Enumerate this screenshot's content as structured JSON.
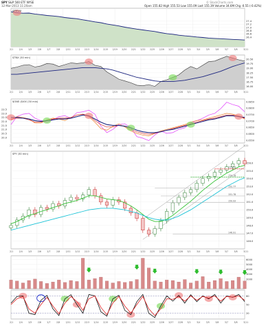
{
  "header": {
    "symbol": "SPY",
    "name": "S&P 500 ETF",
    "exchange": "NYSE",
    "date": "12-Mar-2013 11:20am",
    "open_label": "Open",
    "open": "155.82",
    "high_label": "High",
    "high": "155.53",
    "low_label": "Low",
    "low": "155.09",
    "last_label": "Last",
    "last": "155.39",
    "volume_label": "Volume",
    "volume": "34.6M",
    "chg_label": "Chg",
    "chg": "-0.55 (-0.42%)",
    "copyright": "© StockCharts.com"
  },
  "colors": {
    "area_fill": "#cfe2c8",
    "area_line": "#1a237e",
    "gray_fill": "#cfcfcf",
    "price_up": "#2e7d32",
    "price_down": "#c62828",
    "ma_green": "#33c233",
    "ma_cyan": "#19c2d6",
    "highlight": "#f08080",
    "highlight_green": "#7cdc5c",
    "volume_bar": "#d88a8a",
    "arrow": "#2ebd2e",
    "red_dotted": "#e02020",
    "green_dotted": "#22aa22"
  },
  "chart_data": [
    {
      "type": "area",
      "panel": "ratio-1",
      "label": "SPY:VIX",
      "ylim": [
        25.8,
        28.2
      ],
      "yticks": [
        "27.4",
        "27.2",
        "27.0",
        "26.8",
        "26.6",
        "26.4"
      ],
      "values": [
        27.98,
        27.92,
        27.89,
        27.9,
        27.84,
        27.8,
        27.75,
        27.72,
        27.68,
        27.62,
        27.58,
        27.55,
        27.48,
        27.42,
        27.35,
        27.3,
        27.22,
        27.16,
        27.1,
        27.02,
        26.96,
        26.9,
        26.85,
        26.8,
        26.75,
        26.68,
        26.62,
        26.58,
        26.52,
        26.48,
        26.45,
        26.41,
        26.38,
        26.34,
        26.32,
        26.3,
        26.28,
        26.26,
        26.24,
        26.22
      ]
    },
    {
      "type": "area",
      "panel": "ratio-2",
      "label": "$TNX (30 min)",
      "ylim": [
        15.5,
        21.2
      ],
      "yticks": [
        "20.50",
        "19.75",
        "19.00",
        "18.25",
        "17.50",
        "16.75",
        "16.00"
      ],
      "values": [
        19.0,
        19.2,
        19.5,
        19.6,
        19.2,
        19.4,
        19.8,
        19.7,
        19.3,
        19.6,
        19.9,
        19.8,
        19.9,
        20.1,
        19.5,
        19.3,
        18.4,
        17.8,
        17.2,
        16.9,
        16.6,
        16.2,
        16.1,
        16.3,
        16.0,
        16.8,
        17.1,
        17.5,
        17.9,
        18.7,
        19.3,
        18.9,
        19.5,
        20.1,
        20.2,
        20.6,
        21.0,
        20.7,
        20.4,
        20.2
      ],
      "ma": [
        18.0,
        18.0,
        18.1,
        18.2,
        18.3,
        18.4,
        18.5,
        18.6,
        18.7,
        18.8,
        18.9,
        19.0,
        19.1,
        19.1,
        19.1,
        19.0,
        18.9,
        18.7,
        18.4,
        18.1,
        17.8,
        17.5,
        17.3,
        17.1,
        16.9,
        16.8,
        16.8,
        16.8,
        16.9,
        17.0,
        17.2,
        17.4,
        17.6,
        17.9,
        18.2,
        18.5,
        18.9,
        19.3,
        19.6,
        19.9
      ]
    },
    {
      "type": "line",
      "panel": "breadth",
      "label": "$ONE ($VIX (30 min)",
      "ylim": [
        19.3,
        24.8
      ],
      "yticks_left": [
        "23.5",
        "23.0",
        "22.5",
        "22.0",
        "21.5",
        "21.0",
        "20.5",
        "20.0"
      ],
      "yticks_right": [
        "0.0850",
        "0.0800",
        "0.0750",
        "0.0700",
        "0.0650",
        "0.0600",
        "0.0550"
      ],
      "series": [
        {
          "name": "magenta",
          "values": [
            21.6,
            22.6,
            22.9,
            23.0,
            22.4,
            22.1,
            21.9,
            22.2,
            22.6,
            22.7,
            22.4,
            23.1,
            23.2,
            23.4,
            22.9,
            21.4,
            20.6,
            21.0,
            21.6,
            21.7,
            21.2,
            20.1,
            19.9,
            19.6,
            20.3,
            20.8,
            20.5,
            20.6,
            21.0,
            21.2,
            21.8,
            22.1,
            22.4,
            22.8,
            23.0,
            23.6,
            24.4,
            24.1,
            23.9,
            23.2
          ]
        },
        {
          "name": "orange",
          "values": [
            22.2,
            22.6,
            22.5,
            22.3,
            21.8,
            21.8,
            22.2,
            22.4,
            22.3,
            22.1,
            22.5,
            22.8,
            22.9,
            22.6,
            21.9,
            21.1,
            20.9,
            21.4,
            21.7,
            21.3,
            20.8,
            20.5,
            20.3,
            20.2,
            20.5,
            20.8,
            21.0,
            21.2,
            21.4,
            21.6,
            21.9,
            22.1,
            22.2,
            22.4,
            22.6,
            22.8,
            23.0,
            22.9,
            22.7,
            22.3
          ]
        },
        {
          "name": "red",
          "values": [
            22.3,
            22.4,
            22.4,
            22.2,
            21.9,
            21.9,
            22.1,
            22.3,
            22.4,
            22.4,
            22.5,
            22.8,
            22.9,
            22.7,
            22.1,
            21.6,
            21.3,
            21.3,
            21.5,
            21.4,
            21.0,
            20.7,
            20.5,
            20.4,
            20.5,
            20.7,
            20.9,
            21.1,
            21.3,
            21.5,
            21.7,
            21.9,
            22.1,
            22.3,
            22.4,
            22.6,
            22.8,
            22.8,
            22.6,
            22.4
          ]
        },
        {
          "name": "navy",
          "values": [
            22.5,
            22.5,
            22.4,
            22.3,
            22.1,
            22.0,
            22.1,
            22.2,
            22.3,
            22.3,
            22.4,
            22.6,
            22.8,
            22.7,
            22.3,
            21.9,
            21.6,
            21.5,
            21.5,
            21.4,
            21.2,
            20.9,
            20.7,
            20.6,
            20.6,
            20.7,
            20.9,
            21.0,
            21.2,
            21.4,
            21.6,
            21.8,
            22.0,
            22.2,
            22.3,
            22.5,
            22.7,
            22.7,
            22.6,
            22.5
          ]
        }
      ]
    },
    {
      "type": "bar",
      "panel": "price",
      "label": "SPY (30 min)",
      "ylim": [
        145,
        157.5
      ],
      "yticks": [
        "156.0",
        "155.0",
        "154.0",
        "153.0",
        "152.0",
        "151.0",
        "150.0",
        "149.0",
        "148.0",
        "147.0",
        "146.0"
      ],
      "levels": [
        "155.24",
        "154.18",
        "152.77",
        "151.78",
        "150.93",
        "146.91"
      ],
      "close": [
        148.0,
        148.7,
        149.2,
        150.0,
        149.4,
        150.3,
        150.1,
        150.8,
        150.5,
        151.2,
        151.6,
        151.4,
        151.9,
        152.6,
        151.8,
        151.0,
        150.6,
        151.3,
        151.0,
        150.2,
        149.6,
        148.9,
        147.4,
        146.9,
        147.6,
        148.6,
        149.8,
        150.9,
        151.6,
        152.2,
        152.6,
        153.4,
        154.0,
        154.3,
        154.8,
        155.1,
        155.5,
        155.9,
        156.3,
        155.9
      ],
      "ma_green": [
        148.2,
        148.5,
        148.9,
        149.3,
        149.5,
        149.8,
        150.0,
        150.3,
        150.5,
        150.8,
        151.0,
        151.2,
        151.5,
        151.8,
        151.8,
        151.6,
        151.4,
        151.3,
        151.2,
        150.9,
        150.5,
        150.0,
        149.4,
        148.8,
        148.5,
        148.5,
        148.8,
        149.3,
        149.9,
        150.5,
        151.1,
        151.8,
        152.5,
        153.1,
        153.7,
        154.2,
        154.7,
        155.1,
        155.5,
        155.7
      ],
      "ma_cyan": [
        147.4,
        147.6,
        147.8,
        148.0,
        148.2,
        148.4,
        148.6,
        148.8,
        149.0,
        149.2,
        149.4,
        149.6,
        149.8,
        150.0,
        150.1,
        150.2,
        150.2,
        150.2,
        150.1,
        150.0,
        149.8,
        149.6,
        149.3,
        149.0,
        148.8,
        148.7,
        148.7,
        148.9,
        149.2,
        149.6,
        150.0,
        150.5,
        151.0,
        151.5,
        152.0,
        152.5,
        153.0,
        153.4,
        153.8,
        154.1
      ]
    },
    {
      "type": "bar",
      "panel": "volume",
      "yticks": [
        "6000",
        "5000",
        "4000",
        "3000",
        "2000"
      ],
      "values": [
        1800,
        1600,
        1200,
        1700,
        2000,
        1500,
        1100,
        1400,
        1800,
        1300,
        1700,
        1500,
        6300,
        1800,
        2100,
        2400,
        1600,
        1200,
        1500,
        1300,
        1500,
        1900,
        6300,
        4300,
        1600,
        1400,
        1800,
        1700,
        1400,
        1900,
        1200,
        1600,
        2500,
        1400,
        1700,
        2100,
        1500,
        1700,
        2400,
        1600
      ]
    },
    {
      "type": "line",
      "panel": "stochastic",
      "yticks": [
        "80",
        "50",
        "20"
      ],
      "ylim": [
        0,
        100
      ],
      "series": [
        {
          "name": "black",
          "values": [
            55,
            78,
            80,
            20,
            15,
            65,
            82,
            35,
            12,
            70,
            84,
            50,
            20,
            85,
            80,
            25,
            10,
            70,
            82,
            30,
            15,
            60,
            85,
            20,
            5,
            45,
            80,
            62,
            82,
            55,
            84,
            60,
            80,
            70,
            85,
            55,
            80,
            75,
            85,
            60
          ]
        },
        {
          "name": "red",
          "values": [
            50,
            70,
            78,
            35,
            20,
            50,
            75,
            45,
            18,
            55,
            78,
            60,
            30,
            70,
            80,
            40,
            15,
            55,
            78,
            45,
            20,
            50,
            78,
            35,
            12,
            35,
            70,
            68,
            78,
            62,
            80,
            65,
            78,
            72,
            80,
            62,
            78,
            76,
            80,
            65
          ]
        }
      ]
    }
  ],
  "x_axis": {
    "labels": [
      "2/1",
      "2/4",
      "2/5",
      "2/6",
      "2/7",
      "2/8",
      "2/11",
      "2/12",
      "2/13",
      "2/14",
      "2/15",
      "2/19",
      "2/20",
      "2/21",
      "2/22",
      "2/25",
      "2/26",
      "2/27",
      "2/28",
      "3/1",
      "3/4",
      "3/5",
      "3/6",
      "3/7",
      "3/8",
      "3/11"
    ]
  },
  "panel_labels": {
    "ratio1": "SPY:VIX",
    "ratio2": "$TNX (30 min)",
    "breadth": "$ONE ($VIX (30 min)",
    "price": "SPY (30 min)"
  }
}
